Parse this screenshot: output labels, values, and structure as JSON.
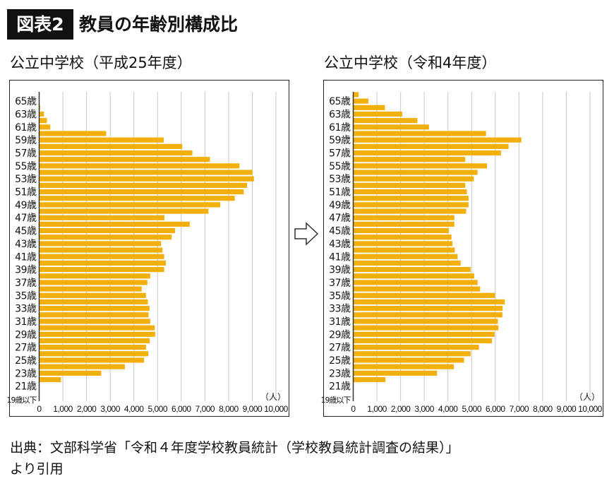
{
  "header": {
    "badge": "図表2",
    "title": "教員の年齢別構成比"
  },
  "source": {
    "line1": "出典：文部科学省「令和４年度学校教員統計（学校教員統計調査の結果）」",
    "line2": "より引用"
  },
  "colors": {
    "bar": "#F2B00E",
    "grid": "#c8c8c8",
    "frame": "#222222"
  },
  "arrow_icon": "right-arrow-outline",
  "chart_data": [
    {
      "type": "bar",
      "orientation": "horizontal",
      "title": "公立中学校（平成25年度）",
      "unit_label": "（人）",
      "xlim": [
        0,
        10000
      ],
      "x_ticks": [
        "0",
        "1,000",
        "2,000",
        "3,000",
        "4,000",
        "5,000",
        "6,000",
        "7,000",
        "8,000",
        "9,000",
        "10,000"
      ],
      "grid": true,
      "categories": [
        "",
        "65歳",
        "",
        "63歳",
        "",
        "61歳",
        "",
        "59歳",
        "",
        "57歳",
        "",
        "55歳",
        "",
        "53歳",
        "",
        "51歳",
        "",
        "49歳",
        "",
        "47歳",
        "",
        "45歳",
        "",
        "43歳",
        "",
        "41歳",
        "",
        "39歳",
        "",
        "37歳",
        "",
        "35歳",
        "",
        "33歳",
        "",
        "31歳",
        "",
        "29歳",
        "",
        "27歳",
        "",
        "25歳",
        "",
        "23歳",
        "",
        "21歳",
        "",
        "19歳以下"
      ],
      "values": [
        0,
        0,
        40,
        200,
        330,
        470,
        2830,
        5260,
        6040,
        6470,
        7210,
        8460,
        9010,
        9070,
        8780,
        8640,
        8260,
        7650,
        7150,
        5290,
        6360,
        5740,
        5590,
        5150,
        5210,
        5280,
        5350,
        5280,
        4690,
        4570,
        4330,
        4510,
        4590,
        4660,
        4620,
        4690,
        4880,
        4900,
        4670,
        4510,
        4610,
        4430,
        3620,
        2620,
        920,
        0,
        0,
        0
      ]
    },
    {
      "type": "bar",
      "orientation": "horizontal",
      "title": "公立中学校（令和4年度）",
      "unit_label": "（人）",
      "xlim": [
        0,
        10000
      ],
      "x_ticks": [
        "0",
        "1,000",
        "2,000",
        "3,000",
        "4,000",
        "5,000",
        "6,000",
        "7,000",
        "8,000",
        "9,000",
        "10,000"
      ],
      "grid": true,
      "categories": [
        "",
        "65歳",
        "",
        "63歳",
        "",
        "61歳",
        "",
        "59歳",
        "",
        "57歳",
        "",
        "55歳",
        "",
        "53歳",
        "",
        "51歳",
        "",
        "49歳",
        "",
        "47歳",
        "",
        "45歳",
        "",
        "43歳",
        "",
        "41歳",
        "",
        "39歳",
        "",
        "37歳",
        "",
        "35歳",
        "",
        "33歳",
        "",
        "31歳",
        "",
        "29歳",
        "",
        "27歳",
        "",
        "25歳",
        "",
        "23歳",
        "",
        "21歳",
        "",
        "19歳以下"
      ],
      "values": [
        230,
        640,
        1340,
        2070,
        2710,
        3200,
        5610,
        7100,
        6560,
        6240,
        4730,
        5650,
        5250,
        5090,
        4730,
        4800,
        4870,
        4870,
        4770,
        4270,
        4270,
        4040,
        4150,
        4190,
        4290,
        4410,
        4540,
        4960,
        5110,
        5250,
        5360,
        5990,
        6400,
        6310,
        6300,
        6110,
        6130,
        5970,
        5860,
        5310,
        4960,
        4680,
        4250,
        3540,
        1360,
        0,
        0,
        0
      ]
    }
  ]
}
